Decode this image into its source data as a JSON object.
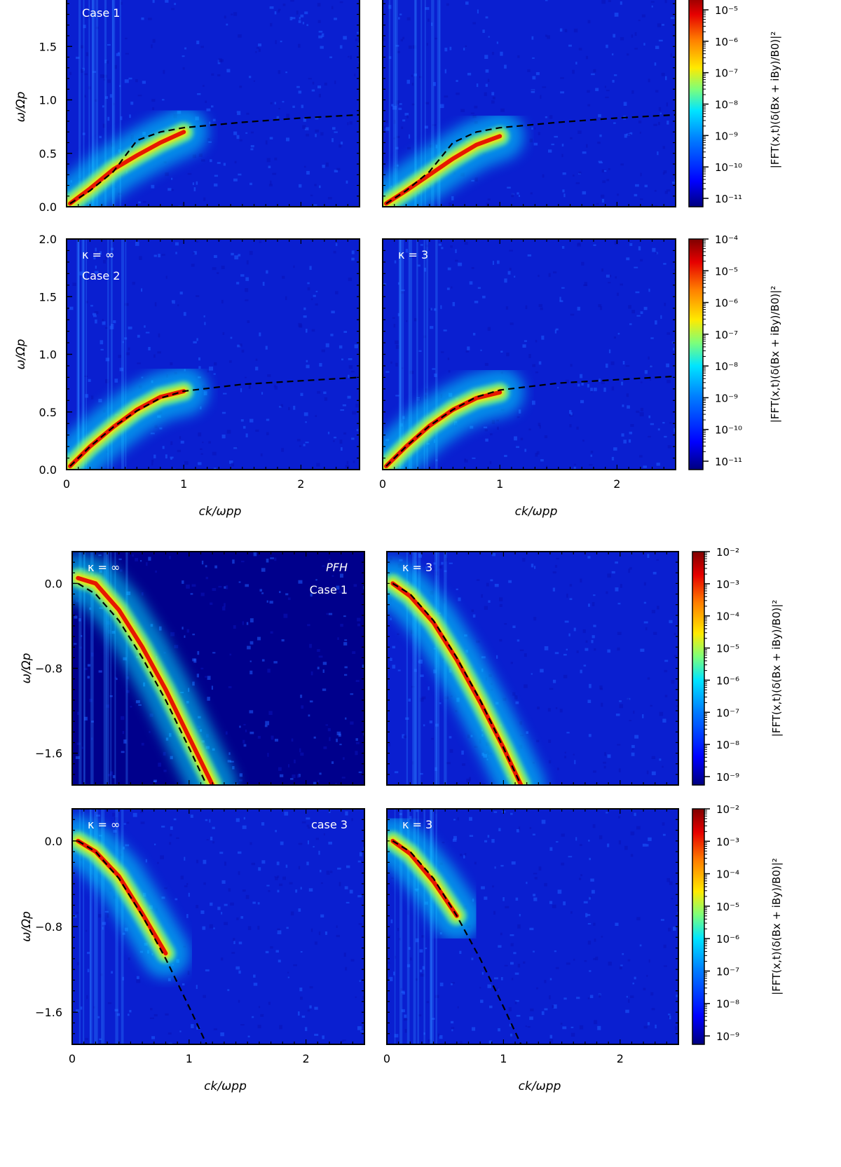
{
  "figure": {
    "colormap": [
      "#00007f",
      "#0000ff",
      "#0080ff",
      "#00e5ff",
      "#7dff7a",
      "#ffea00",
      "#ff7f00",
      "#e60000",
      "#7f0000"
    ],
    "dashed_curve_color": "#000000",
    "label_text_color": "#ffffff"
  },
  "chart_data": [
    {
      "id": "top-row1-left",
      "type": "heatmap",
      "xlabel": "",
      "ylabel": "ω/Ωp",
      "xlim": [
        0,
        2.5
      ],
      "ylim": [
        0,
        2.0
      ],
      "yticks": [
        {
          "v": 0.0,
          "label": "0.0"
        },
        {
          "v": 0.5,
          "label": "0.5"
        },
        {
          "v": 1.0,
          "label": "1.0"
        },
        {
          "v": 1.5,
          "label": "1.5"
        }
      ],
      "xticks": [],
      "annotations": [
        {
          "text": "Case 1",
          "pos": "top-left-2"
        }
      ],
      "dashed_curve": {
        "x": [
          0.03,
          0.2,
          0.4,
          0.6,
          0.8,
          1.0,
          1.5,
          2.0,
          2.5
        ],
        "y": [
          0.03,
          0.15,
          0.33,
          0.62,
          0.7,
          0.74,
          0.79,
          0.83,
          0.86
        ]
      },
      "ridge": {
        "x": [
          0.03,
          0.2,
          0.4,
          0.6,
          0.8,
          1.0
        ],
        "y": [
          0.03,
          0.17,
          0.35,
          0.48,
          0.6,
          0.7
        ]
      }
    },
    {
      "id": "top-row1-right",
      "type": "heatmap",
      "xlabel": "",
      "ylabel": "",
      "xlim": [
        0,
        2.5
      ],
      "ylim": [
        0,
        2.0
      ],
      "yticks": [],
      "xticks": [],
      "annotations": [],
      "dashed_curve": {
        "x": [
          0.03,
          0.2,
          0.4,
          0.6,
          0.8,
          1.0,
          1.5,
          2.0,
          2.5
        ],
        "y": [
          0.03,
          0.15,
          0.33,
          0.6,
          0.7,
          0.74,
          0.79,
          0.83,
          0.86
        ]
      },
      "ridge": {
        "x": [
          0.03,
          0.2,
          0.4,
          0.6,
          0.8,
          1.0
        ],
        "y": [
          0.03,
          0.15,
          0.3,
          0.45,
          0.58,
          0.66
        ]
      }
    },
    {
      "id": "top-row2-left",
      "type": "heatmap",
      "xlabel": "ck/ωpp",
      "ylabel": "ω/Ωp",
      "xlim": [
        0,
        2.5
      ],
      "ylim": [
        0,
        2.0
      ],
      "yticks": [
        {
          "v": 0.0,
          "label": "0.0"
        },
        {
          "v": 0.5,
          "label": "0.5"
        },
        {
          "v": 1.0,
          "label": "1.0"
        },
        {
          "v": 1.5,
          "label": "1.5"
        },
        {
          "v": 2.0,
          "label": "2.0"
        }
      ],
      "xticks": [
        {
          "v": 0,
          "label": "0"
        },
        {
          "v": 1,
          "label": "1"
        },
        {
          "v": 2,
          "label": "2"
        }
      ],
      "annotations": [
        {
          "text": "κ = ∞",
          "pos": "top-left"
        },
        {
          "text": "Case 2",
          "pos": "top-left-2"
        }
      ],
      "dashed_curve": {
        "x": [
          0.03,
          0.2,
          0.4,
          0.6,
          0.8,
          1.0,
          1.5,
          2.0,
          2.5
        ],
        "y": [
          0.03,
          0.2,
          0.37,
          0.51,
          0.62,
          0.68,
          0.74,
          0.77,
          0.8
        ]
      },
      "ridge": {
        "x": [
          0.03,
          0.2,
          0.4,
          0.6,
          0.8,
          1.0
        ],
        "y": [
          0.03,
          0.2,
          0.37,
          0.52,
          0.63,
          0.68
        ]
      }
    },
    {
      "id": "top-row2-right",
      "type": "heatmap",
      "xlabel": "ck/ωpp",
      "ylabel": "",
      "xlim": [
        0,
        2.5
      ],
      "ylim": [
        0,
        2.0
      ],
      "yticks": [],
      "xticks": [
        {
          "v": 0,
          "label": "0"
        },
        {
          "v": 1,
          "label": "1"
        },
        {
          "v": 2,
          "label": "2"
        }
      ],
      "annotations": [
        {
          "text": "κ = 3",
          "pos": "top-left"
        }
      ],
      "dashed_curve": {
        "x": [
          0.03,
          0.2,
          0.4,
          0.6,
          0.8,
          1.0,
          1.5,
          2.0,
          2.5
        ],
        "y": [
          0.03,
          0.2,
          0.38,
          0.52,
          0.63,
          0.69,
          0.75,
          0.78,
          0.81
        ]
      },
      "ridge": {
        "x": [
          0.03,
          0.2,
          0.4,
          0.6,
          0.8,
          1.0
        ],
        "y": [
          0.03,
          0.2,
          0.38,
          0.52,
          0.62,
          0.67
        ]
      }
    },
    {
      "id": "bottom-row1-left",
      "type": "heatmap",
      "xlabel": "",
      "ylabel": "ω/Ωp",
      "xlim": [
        0,
        2.5
      ],
      "ylim": [
        -1.9,
        0.3
      ],
      "yticks": [
        {
          "v": 0.0,
          "label": "0.0"
        },
        {
          "v": -0.8,
          "label": "−0.8"
        },
        {
          "v": -1.6,
          "label": "−1.6"
        }
      ],
      "xticks": [],
      "annotations": [
        {
          "text": "κ = ∞",
          "pos": "top-left"
        },
        {
          "text": "PFH",
          "pos": "top-right",
          "italic": true
        },
        {
          "text": "Case 1",
          "pos": "top-right-2"
        }
      ],
      "dashed_curve": {
        "x": [
          0.05,
          0.2,
          0.4,
          0.6,
          0.8,
          1.0,
          1.15
        ],
        "y": [
          0.0,
          -0.1,
          -0.35,
          -0.7,
          -1.1,
          -1.55,
          -1.9
        ]
      },
      "ridge": {
        "x": [
          0.05,
          0.2,
          0.4,
          0.6,
          0.8,
          1.0,
          1.2
        ],
        "y": [
          0.05,
          0.0,
          -0.25,
          -0.6,
          -1.0,
          -1.45,
          -1.9
        ]
      }
    },
    {
      "id": "bottom-row1-right",
      "type": "heatmap",
      "xlabel": "",
      "ylabel": "",
      "xlim": [
        0,
        2.5
      ],
      "ylim": [
        -1.9,
        0.3
      ],
      "yticks": [],
      "xticks": [],
      "annotations": [
        {
          "text": "κ = 3",
          "pos": "top-left"
        }
      ],
      "dashed_curve": {
        "x": [
          0.05,
          0.2,
          0.4,
          0.6,
          0.8,
          1.0,
          1.15
        ],
        "y": [
          0.0,
          -0.1,
          -0.35,
          -0.7,
          -1.1,
          -1.55,
          -1.9
        ]
      },
      "ridge": {
        "x": [
          0.05,
          0.2,
          0.4,
          0.6,
          0.8,
          1.0,
          1.15
        ],
        "y": [
          0.0,
          -0.12,
          -0.37,
          -0.72,
          -1.12,
          -1.55,
          -1.9
        ]
      }
    },
    {
      "id": "bottom-row2-left",
      "type": "heatmap",
      "xlabel": "ck/ωpp",
      "ylabel": "ω/Ωp",
      "xlim": [
        0,
        2.5
      ],
      "ylim": [
        -1.9,
        0.3
      ],
      "yticks": [
        {
          "v": 0.0,
          "label": "0.0"
        },
        {
          "v": -0.8,
          "label": "−0.8"
        },
        {
          "v": -1.6,
          "label": "−1.6"
        }
      ],
      "xticks": [
        {
          "v": 0,
          "label": "0"
        },
        {
          "v": 1,
          "label": "1"
        },
        {
          "v": 2,
          "label": "2"
        }
      ],
      "annotations": [
        {
          "text": "κ = ∞",
          "pos": "top-left"
        },
        {
          "text": "case 3",
          "pos": "top-right"
        }
      ],
      "dashed_curve": {
        "x": [
          0.05,
          0.2,
          0.4,
          0.6,
          0.8,
          1.0,
          1.15
        ],
        "y": [
          0.0,
          -0.1,
          -0.35,
          -0.7,
          -1.1,
          -1.55,
          -1.9
        ]
      },
      "ridge": {
        "x": [
          0.05,
          0.2,
          0.4,
          0.6,
          0.8
        ],
        "y": [
          0.0,
          -0.1,
          -0.33,
          -0.68,
          -1.05
        ]
      }
    },
    {
      "id": "bottom-row2-right",
      "type": "heatmap",
      "xlabel": "ck/ωpp",
      "ylabel": "",
      "xlim": [
        0,
        2.5
      ],
      "ylim": [
        -1.9,
        0.3
      ],
      "yticks": [],
      "xticks": [
        {
          "v": 0,
          "label": "0"
        },
        {
          "v": 1,
          "label": "1"
        },
        {
          "v": 2,
          "label": "2"
        }
      ],
      "annotations": [
        {
          "text": "κ = 3",
          "pos": "top-left"
        }
      ],
      "dashed_curve": {
        "x": [
          0.05,
          0.2,
          0.4,
          0.6,
          0.8,
          1.0,
          1.15
        ],
        "y": [
          0.0,
          -0.1,
          -0.35,
          -0.7,
          -1.1,
          -1.55,
          -1.9
        ]
      },
      "ridge": {
        "x": [
          0.05,
          0.2,
          0.4,
          0.6
        ],
        "y": [
          0.0,
          -0.12,
          -0.38,
          -0.7
        ]
      }
    }
  ],
  "colorbars": [
    {
      "id": "cbar-top-row1",
      "label": "|FFT(x,t)(δ(Bx + iBy)/B0)|²",
      "ticks": [
        "10⁻⁵",
        "10⁻⁶",
        "10⁻⁷",
        "10⁻⁸",
        "10⁻⁹",
        "10⁻¹⁰",
        "10⁻¹¹"
      ]
    },
    {
      "id": "cbar-top-row2",
      "label": "|FFT(x,t)(δ(Bx + iBy)/B0)|²",
      "ticks": [
        "10⁻⁴",
        "10⁻⁵",
        "10⁻⁶",
        "10⁻⁷",
        "10⁻⁸",
        "10⁻⁹",
        "10⁻¹⁰",
        "10⁻¹¹"
      ]
    },
    {
      "id": "cbar-bottom-row1",
      "label": "|FFT(x,t)(δ(Bx + iBy)/B0)|²",
      "ticks": [
        "10⁻²",
        "10⁻³",
        "10⁻⁴",
        "10⁻⁵",
        "10⁻⁶",
        "10⁻⁷",
        "10⁻⁸",
        "10⁻⁹"
      ]
    },
    {
      "id": "cbar-bottom-row2",
      "label": "|FFT(x,t)(δ(Bx + iBy)/B0)|²",
      "ticks": [
        "10⁻²",
        "10⁻³",
        "10⁻⁴",
        "10⁻⁵",
        "10⁻⁶",
        "10⁻⁷",
        "10⁻⁸",
        "10⁻⁹"
      ]
    }
  ]
}
